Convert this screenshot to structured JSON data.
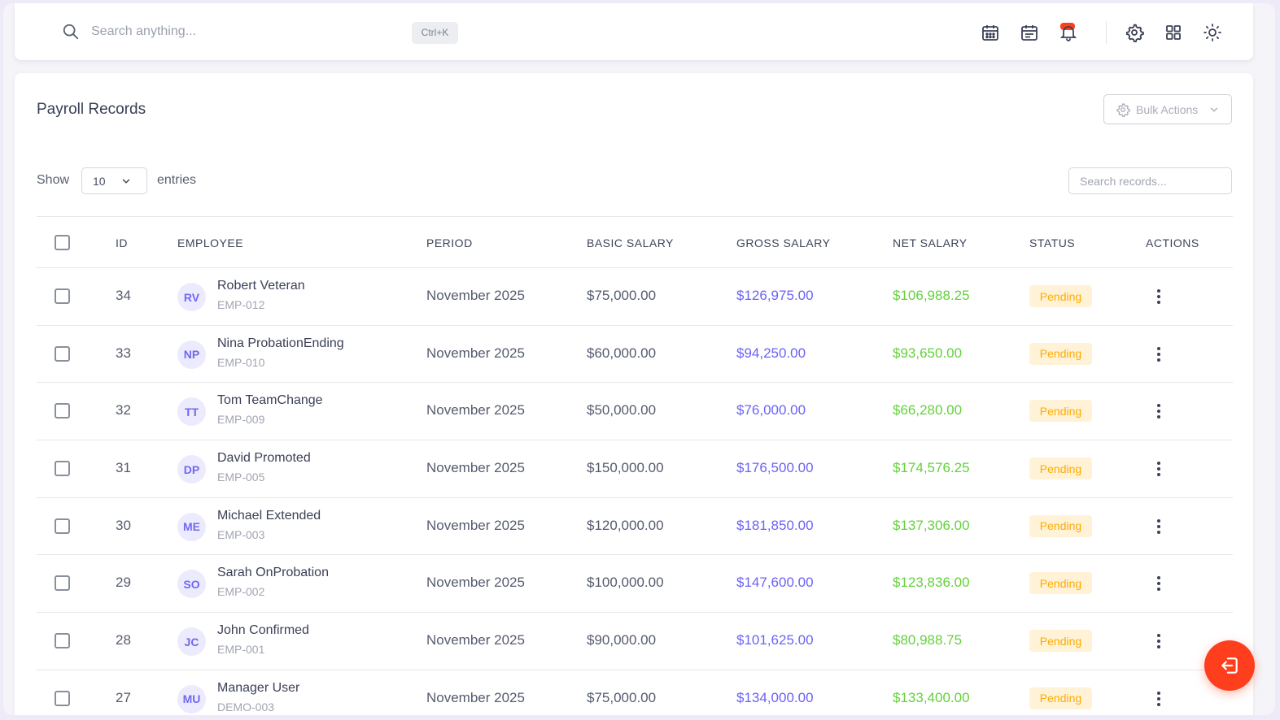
{
  "topbar": {
    "search_placeholder": "Search anything...",
    "shortcut": "Ctrl+K",
    "icons": [
      "calendar-icon",
      "calendar-note-icon",
      "notification-bell-icon",
      "gear-icon",
      "grid-icon",
      "sun-icon"
    ],
    "notification_color": "#ff3e1d"
  },
  "card": {
    "title": "Payroll Records",
    "bulk_actions_label": "Bulk Actions",
    "show_label": "Show",
    "entries_value": "10",
    "entries_label": "entries",
    "records_search_placeholder": "Search records..."
  },
  "table": {
    "headers": {
      "id": "ID",
      "employee": "EMPLOYEE",
      "period": "PERIOD",
      "basic": "BASIC SALARY",
      "gross": "GROSS SALARY",
      "net": "NET SALARY",
      "status": "STATUS",
      "actions": "ACTIONS"
    },
    "rows": [
      {
        "id": "34",
        "initials": "RV",
        "name": "Robert Veteran",
        "code": "EMP-012",
        "period": "November 2025",
        "basic": "$75,000.00",
        "gross": "$126,975.00",
        "net": "$106,988.25",
        "status": "Pending"
      },
      {
        "id": "33",
        "initials": "NP",
        "name": "Nina ProbationEnding",
        "code": "EMP-010",
        "period": "November 2025",
        "basic": "$60,000.00",
        "gross": "$94,250.00",
        "net": "$93,650.00",
        "status": "Pending"
      },
      {
        "id": "32",
        "initials": "TT",
        "name": "Tom TeamChange",
        "code": "EMP-009",
        "period": "November 2025",
        "basic": "$50,000.00",
        "gross": "$76,000.00",
        "net": "$66,280.00",
        "status": "Pending"
      },
      {
        "id": "31",
        "initials": "DP",
        "name": "David Promoted",
        "code": "EMP-005",
        "period": "November 2025",
        "basic": "$150,000.00",
        "gross": "$176,500.00",
        "net": "$174,576.25",
        "status": "Pending"
      },
      {
        "id": "30",
        "initials": "ME",
        "name": "Michael Extended",
        "code": "EMP-003",
        "period": "November 2025",
        "basic": "$120,000.00",
        "gross": "$181,850.00",
        "net": "$137,306.00",
        "status": "Pending"
      },
      {
        "id": "29",
        "initials": "SO",
        "name": "Sarah OnProbation",
        "code": "EMP-002",
        "period": "November 2025",
        "basic": "$100,000.00",
        "gross": "$147,600.00",
        "net": "$123,836.00",
        "status": "Pending"
      },
      {
        "id": "28",
        "initials": "JC",
        "name": "John Confirmed",
        "code": "EMP-001",
        "period": "November 2025",
        "basic": "$90,000.00",
        "gross": "$101,625.00",
        "net": "$80,988.75",
        "status": "Pending"
      },
      {
        "id": "27",
        "initials": "MU",
        "name": "Manager User",
        "code": "DEMO-003",
        "period": "November 2025",
        "basic": "$75,000.00",
        "gross": "$134,000.00",
        "net": "$133,400.00",
        "status": "Pending"
      }
    ]
  },
  "colors": {
    "accent": "#7367f0",
    "gross": "#6b63f6",
    "net": "#63d13b",
    "pending_bg": "#fff2d6",
    "pending_text": "#ffab00",
    "fab": "#ff3e1d"
  },
  "fab": {
    "icon": "logout-icon"
  }
}
